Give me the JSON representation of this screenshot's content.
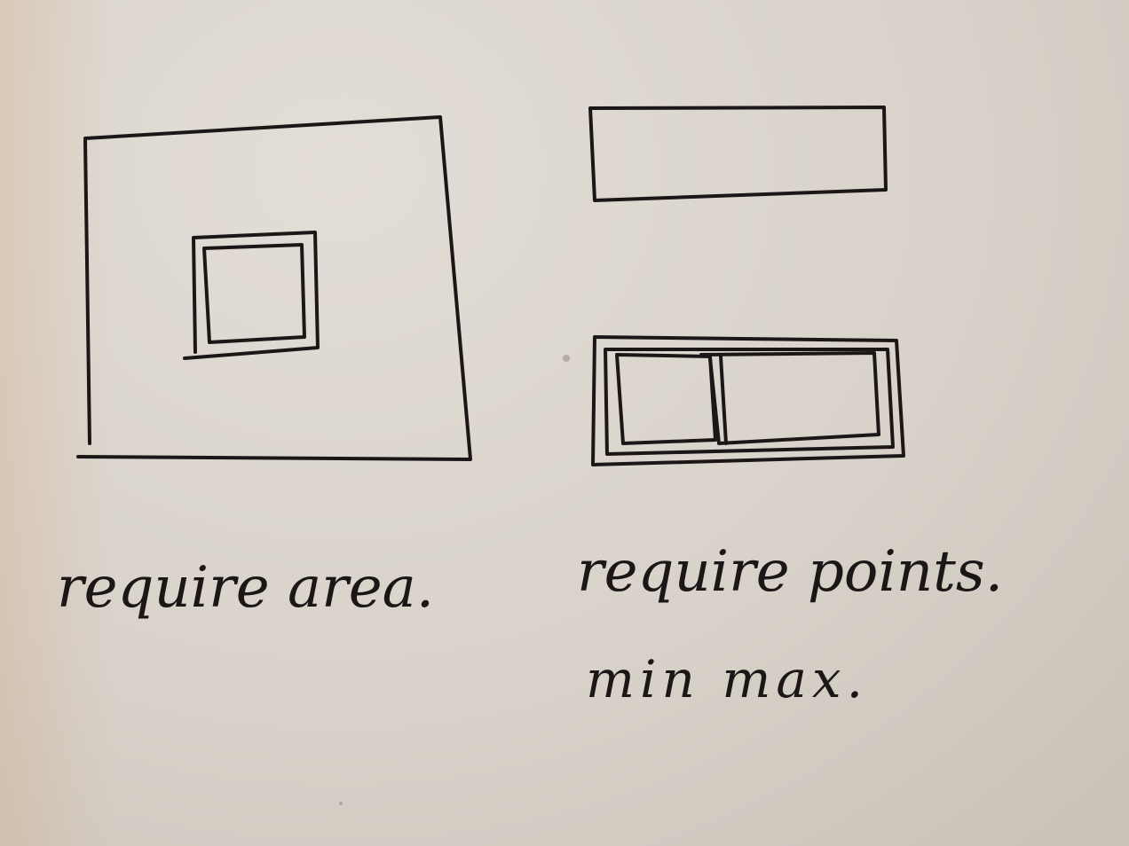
{
  "sketch": {
    "left_caption": "require area.",
    "right_caption": "require points.",
    "right_subcaption": "min max.",
    "ink_color": "#1a1716",
    "paper_color": "#d9d3cb"
  }
}
